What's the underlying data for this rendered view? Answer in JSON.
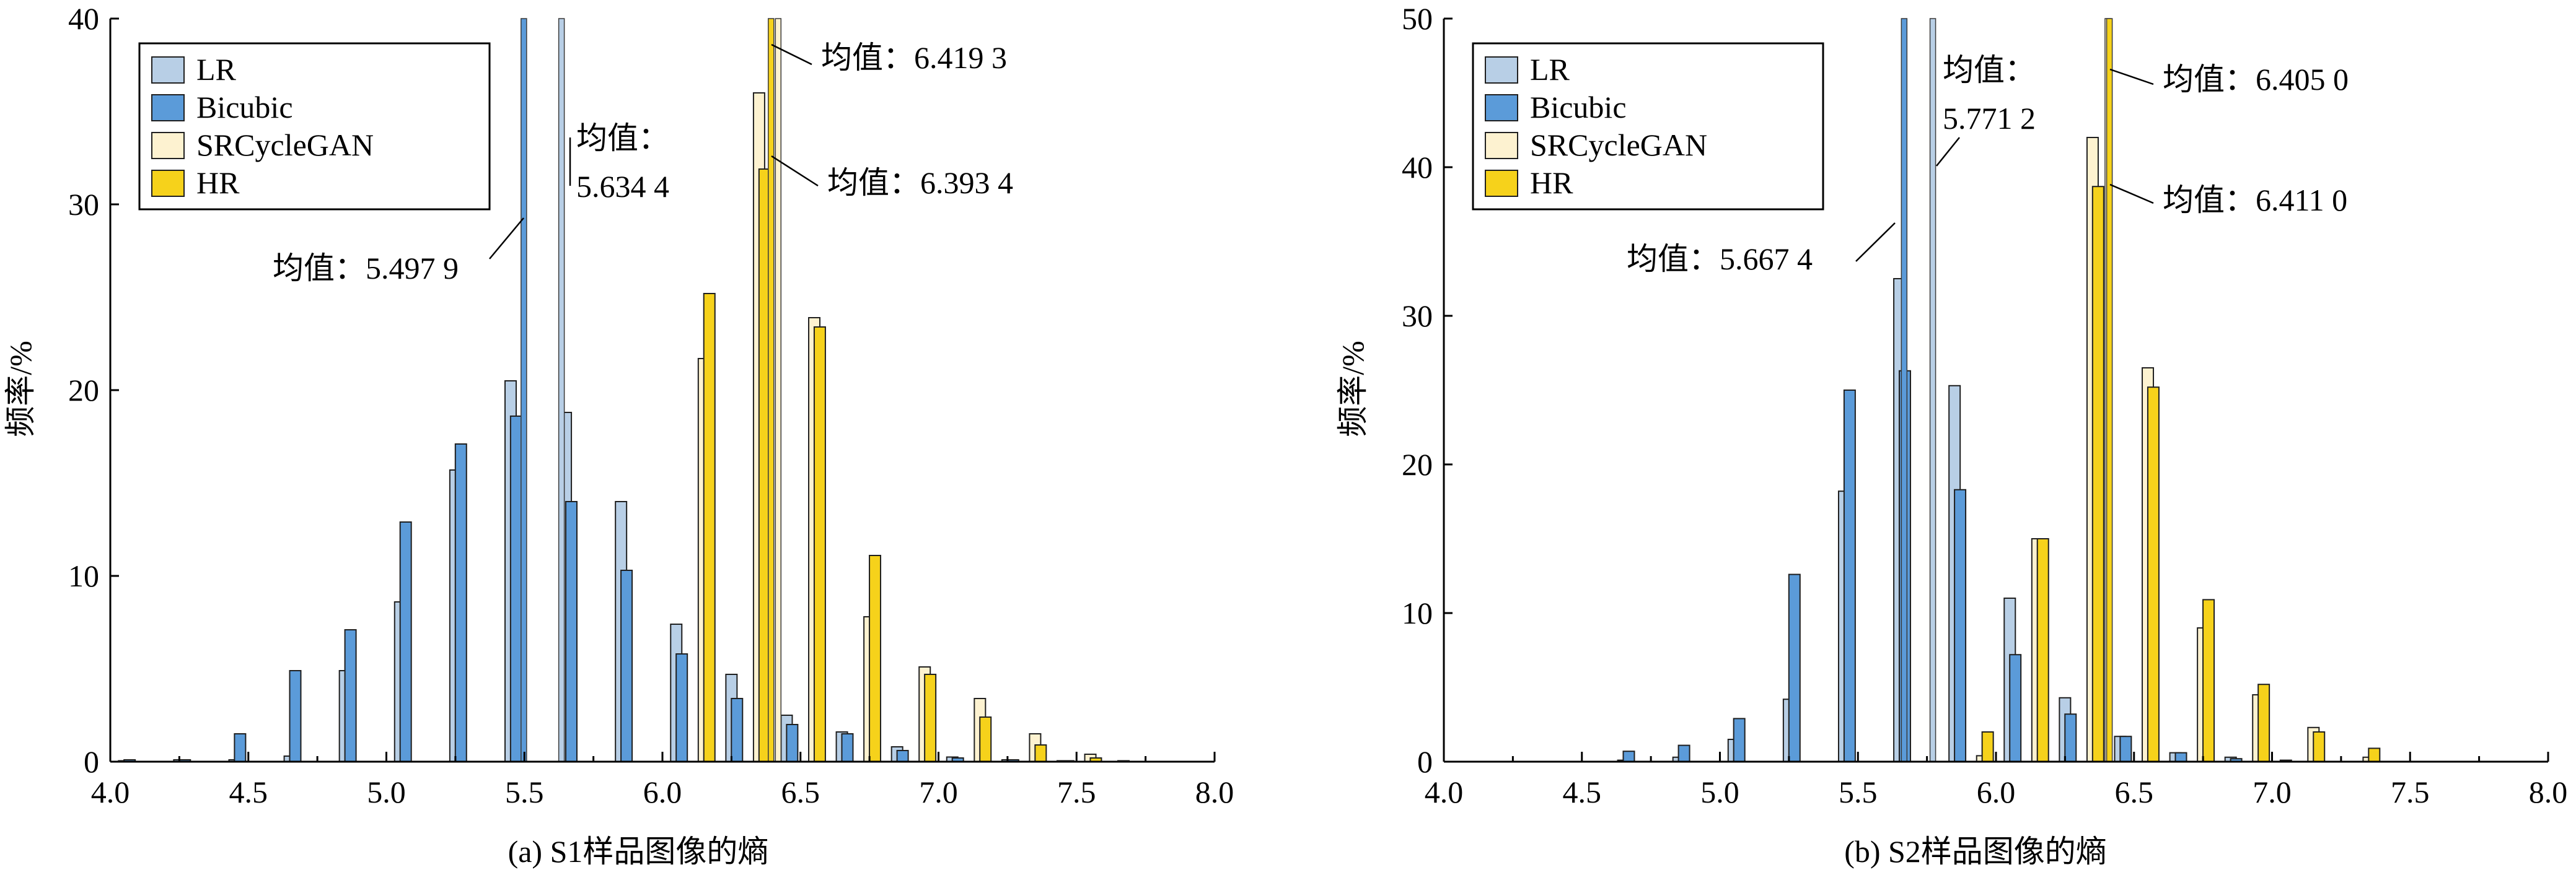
{
  "chart_data": [
    {
      "type": "bar",
      "caption": "(a) S1样品图像的熵",
      "ylabel": "频率/%",
      "xlim": [
        4.0,
        8.0
      ],
      "ylim": [
        0,
        40
      ],
      "xticks": [
        "4.0",
        "4.5",
        "5.0",
        "5.5",
        "6.0",
        "6.5",
        "7.0",
        "7.5",
        "8.0"
      ],
      "yticks": [
        "0",
        "10",
        "20",
        "30",
        "40"
      ],
      "grid": false,
      "legend_position": "top-left",
      "series": [
        {
          "name": "LR",
          "color": "#b8cfe6",
          "points": [
            [
              4.05,
              0.05
            ],
            [
              4.25,
              0.1
            ],
            [
              4.45,
              0.1
            ],
            [
              4.65,
              0.3
            ],
            [
              4.85,
              4.9
            ],
            [
              5.05,
              8.6
            ],
            [
              5.25,
              15.7
            ],
            [
              5.45,
              20.5
            ],
            [
              5.65,
              18.8
            ],
            [
              5.85,
              14.0
            ],
            [
              6.05,
              7.4
            ],
            [
              6.25,
              4.7
            ],
            [
              6.45,
              2.5
            ],
            [
              6.65,
              1.6
            ],
            [
              6.85,
              0.8
            ],
            [
              7.05,
              0.25
            ],
            [
              7.25,
              0.1
            ],
            [
              7.45,
              0.05
            ]
          ]
        },
        {
          "name": "Bicubic",
          "color": "#5b9bd9",
          "points": [
            [
              4.07,
              0.1
            ],
            [
              4.27,
              0.1
            ],
            [
              4.47,
              1.5
            ],
            [
              4.67,
              4.9
            ],
            [
              4.87,
              7.1
            ],
            [
              5.07,
              12.9
            ],
            [
              5.27,
              17.1
            ],
            [
              5.47,
              18.6
            ],
            [
              5.67,
              14.0
            ],
            [
              5.87,
              10.3
            ],
            [
              6.07,
              5.8
            ],
            [
              6.27,
              3.4
            ],
            [
              6.47,
              2.0
            ],
            [
              6.67,
              1.5
            ],
            [
              6.87,
              0.6
            ],
            [
              7.07,
              0.2
            ],
            [
              7.27,
              0.1
            ],
            [
              7.47,
              0.05
            ],
            [
              7.67,
              0.05
            ]
          ]
        },
        {
          "name": "SRCycleGAN",
          "color": "#fdf2d0",
          "points": [
            [
              6.15,
              21.7
            ],
            [
              6.35,
              36.0
            ],
            [
              6.55,
              23.9
            ],
            [
              6.75,
              7.8
            ],
            [
              6.95,
              5.1
            ],
            [
              7.15,
              3.4
            ],
            [
              7.35,
              1.5
            ],
            [
              7.55,
              0.4
            ]
          ]
        },
        {
          "name": "HR",
          "color": "#f6d21b",
          "points": [
            [
              6.17,
              25.2
            ],
            [
              6.37,
              31.9
            ],
            [
              6.57,
              23.4
            ],
            [
              6.77,
              11.1
            ],
            [
              6.97,
              4.7
            ],
            [
              7.17,
              2.4
            ],
            [
              7.37,
              0.9
            ],
            [
              7.57,
              0.2
            ]
          ]
        }
      ],
      "mean_lines": [
        {
          "series": "LR",
          "x": 5.6344,
          "text": [
            "均值：",
            "5.634 4"
          ]
        },
        {
          "series": "Bicubic",
          "x": 5.4979,
          "text": [
            "均值：5.497 9"
          ]
        },
        {
          "series": "SRCycleGAN",
          "x": 6.4193,
          "text": [
            "均值：6.419 3"
          ]
        },
        {
          "series": "HR",
          "x": 6.3934,
          "text": [
            "均值：6.393 4"
          ]
        }
      ]
    },
    {
      "type": "bar",
      "caption": "(b) S2样品图像的熵",
      "ylabel": "频率/%",
      "xlim": [
        4.0,
        8.0
      ],
      "ylim": [
        0,
        50
      ],
      "xticks": [
        "4.0",
        "4.5",
        "5.0",
        "5.5",
        "6.0",
        "6.5",
        "7.0",
        "7.5",
        "8.0"
      ],
      "yticks": [
        "0",
        "10",
        "20",
        "30",
        "40",
        "50"
      ],
      "grid": false,
      "legend_position": "top-left",
      "series": [
        {
          "name": "LR",
          "color": "#b8cfe6",
          "points": [
            [
              4.65,
              0.1
            ],
            [
              4.85,
              0.3
            ],
            [
              5.05,
              1.5
            ],
            [
              5.25,
              4.2
            ],
            [
              5.45,
              18.2
            ],
            [
              5.65,
              32.5
            ],
            [
              5.85,
              25.3
            ],
            [
              6.05,
              11.0
            ],
            [
              6.25,
              4.3
            ],
            [
              6.45,
              1.7
            ],
            [
              6.65,
              0.6
            ],
            [
              6.85,
              0.3
            ],
            [
              7.05,
              0.1
            ]
          ]
        },
        {
          "name": "Bicubic",
          "color": "#5b9bd9",
          "points": [
            [
              4.67,
              0.7
            ],
            [
              4.87,
              1.1
            ],
            [
              5.07,
              2.9
            ],
            [
              5.27,
              12.6
            ],
            [
              5.47,
              25.0
            ],
            [
              5.67,
              26.3
            ],
            [
              5.87,
              18.3
            ],
            [
              6.07,
              7.2
            ],
            [
              6.27,
              3.2
            ],
            [
              6.47,
              1.7
            ],
            [
              6.67,
              0.6
            ],
            [
              6.87,
              0.2
            ]
          ]
        },
        {
          "name": "SRCycleGAN",
          "color": "#fdf2d0",
          "points": [
            [
              5.95,
              0.4
            ],
            [
              6.15,
              15.0
            ],
            [
              6.35,
              42.0
            ],
            [
              6.55,
              26.5
            ],
            [
              6.75,
              9.0
            ],
            [
              6.95,
              4.5
            ],
            [
              7.15,
              2.3
            ],
            [
              7.35,
              0.3
            ]
          ]
        },
        {
          "name": "HR",
          "color": "#f6d21b",
          "points": [
            [
              5.97,
              2.0
            ],
            [
              6.17,
              15.0
            ],
            [
              6.37,
              38.7
            ],
            [
              6.57,
              25.2
            ],
            [
              6.77,
              10.9
            ],
            [
              6.97,
              5.2
            ],
            [
              7.17,
              2.0
            ],
            [
              7.37,
              0.9
            ]
          ]
        }
      ],
      "mean_lines": [
        {
          "series": "LR",
          "x": 5.7712,
          "text": [
            "均值：",
            "5.771 2"
          ]
        },
        {
          "series": "Bicubic",
          "x": 5.6674,
          "text": [
            "均值：5.667 4"
          ]
        },
        {
          "series": "SRCycleGAN",
          "x": 6.405,
          "text": [
            "均值：6.405 0"
          ]
        },
        {
          "series": "HR",
          "x": 6.411,
          "text": [
            "均值：6.411 0"
          ]
        }
      ]
    }
  ]
}
